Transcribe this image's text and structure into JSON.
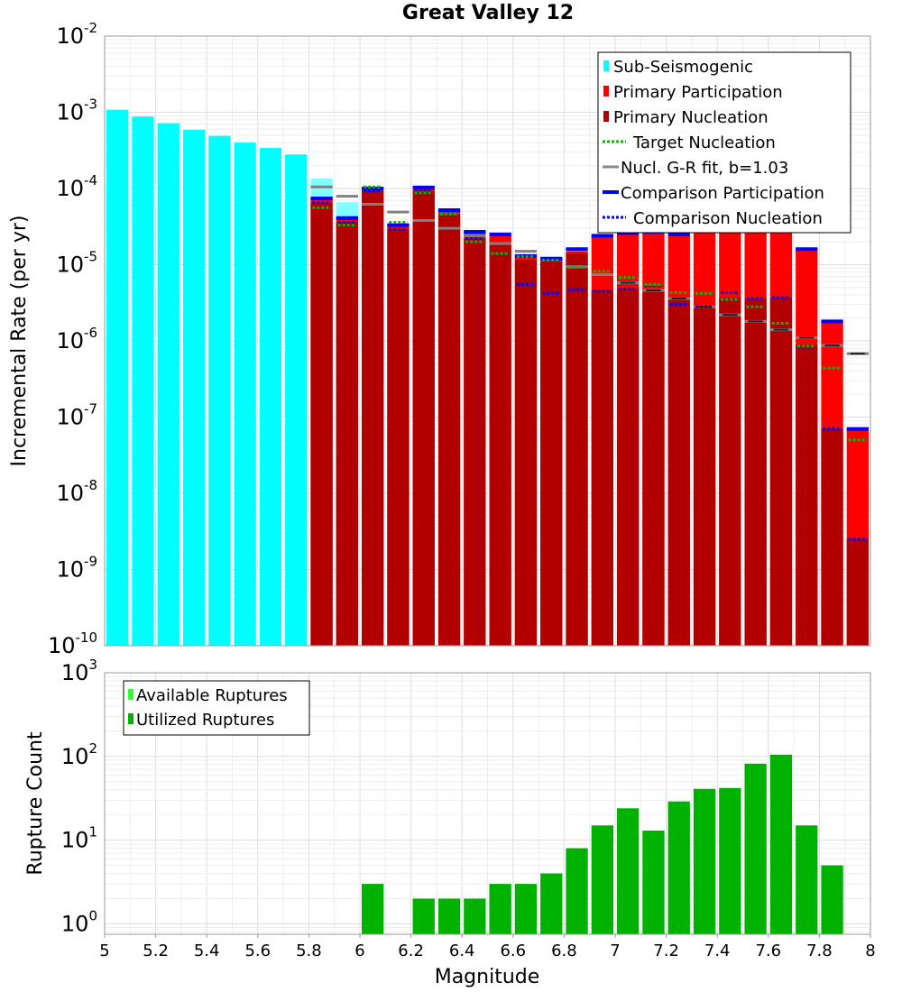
{
  "chart_data": [
    {
      "type": "bar",
      "title": "Great Valley 12",
      "xlabel": "",
      "ylabel": "Incremental Rate (per yr)",
      "yscale": "log",
      "ylim": [
        1e-10,
        0.01
      ],
      "xlim": [
        5,
        8
      ],
      "grid": true,
      "legend_position": "top-right",
      "x": [
        5.05,
        5.15,
        5.25,
        5.35,
        5.45,
        5.55,
        5.65,
        5.75,
        5.85,
        5.95,
        6.05,
        6.15,
        6.25,
        6.35,
        6.45,
        6.55,
        6.65,
        6.75,
        6.85,
        6.95,
        7.05,
        7.15,
        7.25,
        7.35,
        7.45,
        7.55,
        7.65,
        7.75,
        7.85,
        7.95
      ],
      "series": [
        {
          "name": "Sub-Seismogenic",
          "color": "#00ffff",
          "values": [
            0.00108,
            0.00088,
            0.00072,
            0.00059,
            0.00049,
            0.0004,
            0.00034,
            0.00028,
            0.000135,
            6.6e-05,
            0,
            0,
            0,
            0,
            0,
            0,
            0,
            0,
            0,
            0,
            0,
            0,
            0,
            0,
            0,
            0,
            0,
            0,
            0,
            0
          ]
        },
        {
          "name": "Primary Participation",
          "color": "#ff0000",
          "values": [
            0,
            0,
            0,
            0,
            0,
            0,
            0,
            0,
            7.4e-05,
            4.1e-05,
            0.0001,
            3.3e-05,
            0.0001,
            5.2e-05,
            2.7e-05,
            2.5e-05,
            1.3e-05,
            1.2e-05,
            1.5e-05,
            2.4e-05,
            2.5e-05,
            2.7e-05,
            2.4e-05,
            2.8e-05,
            4.8e-05,
            5e-05,
            5.8e-05,
            1.6e-05,
            1.8e-06,
            7e-08
          ]
        },
        {
          "name": "Primary Nucleation",
          "color": "#b20000",
          "values": [
            0,
            0,
            0,
            0,
            0,
            0,
            0,
            0,
            6.5e-05,
            3.6e-05,
            9.3e-05,
            2.9e-05,
            9.3e-05,
            4.5e-05,
            2.2e-05,
            1.8e-05,
            1.15e-05,
            1.1e-05,
            1.4e-05,
            4.6e-06,
            4.8e-06,
            4.7e-06,
            3.8e-06,
            2.9e-06,
            3.7e-06,
            3.6e-06,
            3.7e-06,
            8.9e-07,
            7e-08,
            2.5e-09
          ]
        },
        {
          "name": "Target Nucleation",
          "color": "#00bb00",
          "values": [
            null,
            null,
            null,
            null,
            null,
            null,
            null,
            null,
            5.6e-05,
            3.3e-05,
            0.000105,
            3.6e-05,
            8.8e-05,
            4.6e-05,
            2e-05,
            1.4e-05,
            1.28e-05,
            1.15e-05,
            9.2e-06,
            8.2e-06,
            6.8e-06,
            5.5e-06,
            4.3e-06,
            4.2e-06,
            3.5e-06,
            2.8e-06,
            1.7e-06,
            8.5e-07,
            4.4e-07,
            5e-08
          ]
        },
        {
          "name": "Nucl. G-R fit, b=1.03",
          "color": "#888888",
          "values": [
            null,
            null,
            null,
            null,
            null,
            null,
            null,
            null,
            0.000105,
            7.9e-05,
            6.2e-05,
            4.9e-05,
            3.8e-05,
            3e-05,
            2.4e-05,
            1.9e-05,
            1.5e-05,
            1.18e-05,
            9.4e-06,
            7.4e-06,
            5.8e-06,
            4.6e-06,
            3.6e-06,
            2.8e-06,
            2.2e-06,
            1.8e-06,
            1.4e-06,
            1.1e-06,
            8.7e-07,
            6.8e-07
          ]
        },
        {
          "name": "Comparison Participation",
          "color": "#0000ff",
          "values": [
            null,
            null,
            null,
            null,
            null,
            null,
            null,
            null,
            7.4e-05,
            4.1e-05,
            0.0001,
            3.3e-05,
            0.000103,
            5.2e-05,
            2.7e-05,
            2.5e-05,
            1.3e-05,
            1.2e-05,
            1.6e-05,
            2.4e-05,
            2.6e-05,
            2.7e-05,
            2.5e-05,
            2.9e-05,
            4.8e-05,
            5e-05,
            5.8e-05,
            1.6e-05,
            1.8e-06,
            7e-08
          ]
        },
        {
          "name": "Comparison Nucleation",
          "color": "#0000ff",
          "values": [
            null,
            null,
            null,
            null,
            null,
            null,
            null,
            null,
            6.5e-05,
            3.6e-05,
            9.3e-05,
            2.9e-05,
            9.3e-05,
            4.5e-05,
            2.2e-05,
            1.4e-05,
            5.5e-06,
            4.2e-06,
            4.7e-06,
            4.5e-06,
            4.8e-06,
            5.3e-06,
            3e-06,
            2.8e-06,
            4.3e-06,
            3.6e-06,
            3.7e-06,
            8.3e-07,
            7e-08,
            2.5e-09
          ]
        }
      ]
    },
    {
      "type": "bar",
      "title": "",
      "xlabel": "Magnitude",
      "ylabel": "Rupture Count",
      "yscale": "log",
      "ylim": [
        0.75,
        1000
      ],
      "xlim": [
        5,
        8
      ],
      "grid": true,
      "legend_position": "top-left",
      "x": [
        5.05,
        5.15,
        5.25,
        5.35,
        5.45,
        5.55,
        5.65,
        5.75,
        5.85,
        5.95,
        6.05,
        6.15,
        6.25,
        6.35,
        6.45,
        6.55,
        6.65,
        6.75,
        6.85,
        6.95,
        7.05,
        7.15,
        7.25,
        7.35,
        7.45,
        7.55,
        7.65,
        7.75,
        7.85,
        7.95
      ],
      "series": [
        {
          "name": "Available Ruptures",
          "color": "#33ff33",
          "values": [
            0,
            0,
            0,
            0,
            0,
            0,
            0,
            0,
            0,
            0,
            3,
            0,
            2,
            2,
            2,
            3,
            3,
            4,
            8,
            15,
            24,
            13,
            29,
            41,
            42,
            82,
            105,
            15,
            5,
            0
          ]
        },
        {
          "name": "Utilized Ruptures",
          "color": "#00b200",
          "values": [
            0,
            0,
            0,
            0,
            0,
            0,
            0,
            0,
            0,
            0,
            3,
            0,
            2,
            2,
            2,
            3,
            3,
            4,
            8,
            15,
            24,
            13,
            29,
            41,
            42,
            82,
            105,
            15,
            5,
            0
          ]
        }
      ]
    }
  ],
  "x_ticks": [
    "5",
    "5.2",
    "5.4",
    "5.6",
    "5.8",
    "6",
    "6.2",
    "6.4",
    "6.6",
    "6.8",
    "7",
    "7.2",
    "7.4",
    "7.6",
    "7.8",
    "8"
  ],
  "top_y_ticks": [
    {
      "base": "10",
      "exp": "-2",
      "value": 0.01
    },
    {
      "base": "10",
      "exp": "-3",
      "value": 0.001
    },
    {
      "base": "10",
      "exp": "-4",
      "value": 0.0001
    },
    {
      "base": "10",
      "exp": "-5",
      "value": 1e-05
    },
    {
      "base": "10",
      "exp": "-6",
      "value": 1e-06
    },
    {
      "base": "10",
      "exp": "-7",
      "value": 1e-07
    },
    {
      "base": "10",
      "exp": "-8",
      "value": 1e-08
    },
    {
      "base": "10",
      "exp": "-9",
      "value": 1e-09
    },
    {
      "base": "10",
      "exp": "-10",
      "value": 1e-10
    }
  ],
  "bottom_y_ticks": [
    {
      "base": "10",
      "exp": "3",
      "value": 1000
    },
    {
      "base": "10",
      "exp": "2",
      "value": 100
    },
    {
      "base": "10",
      "exp": "1",
      "value": 10
    },
    {
      "base": "10",
      "exp": "0",
      "value": 1
    }
  ]
}
